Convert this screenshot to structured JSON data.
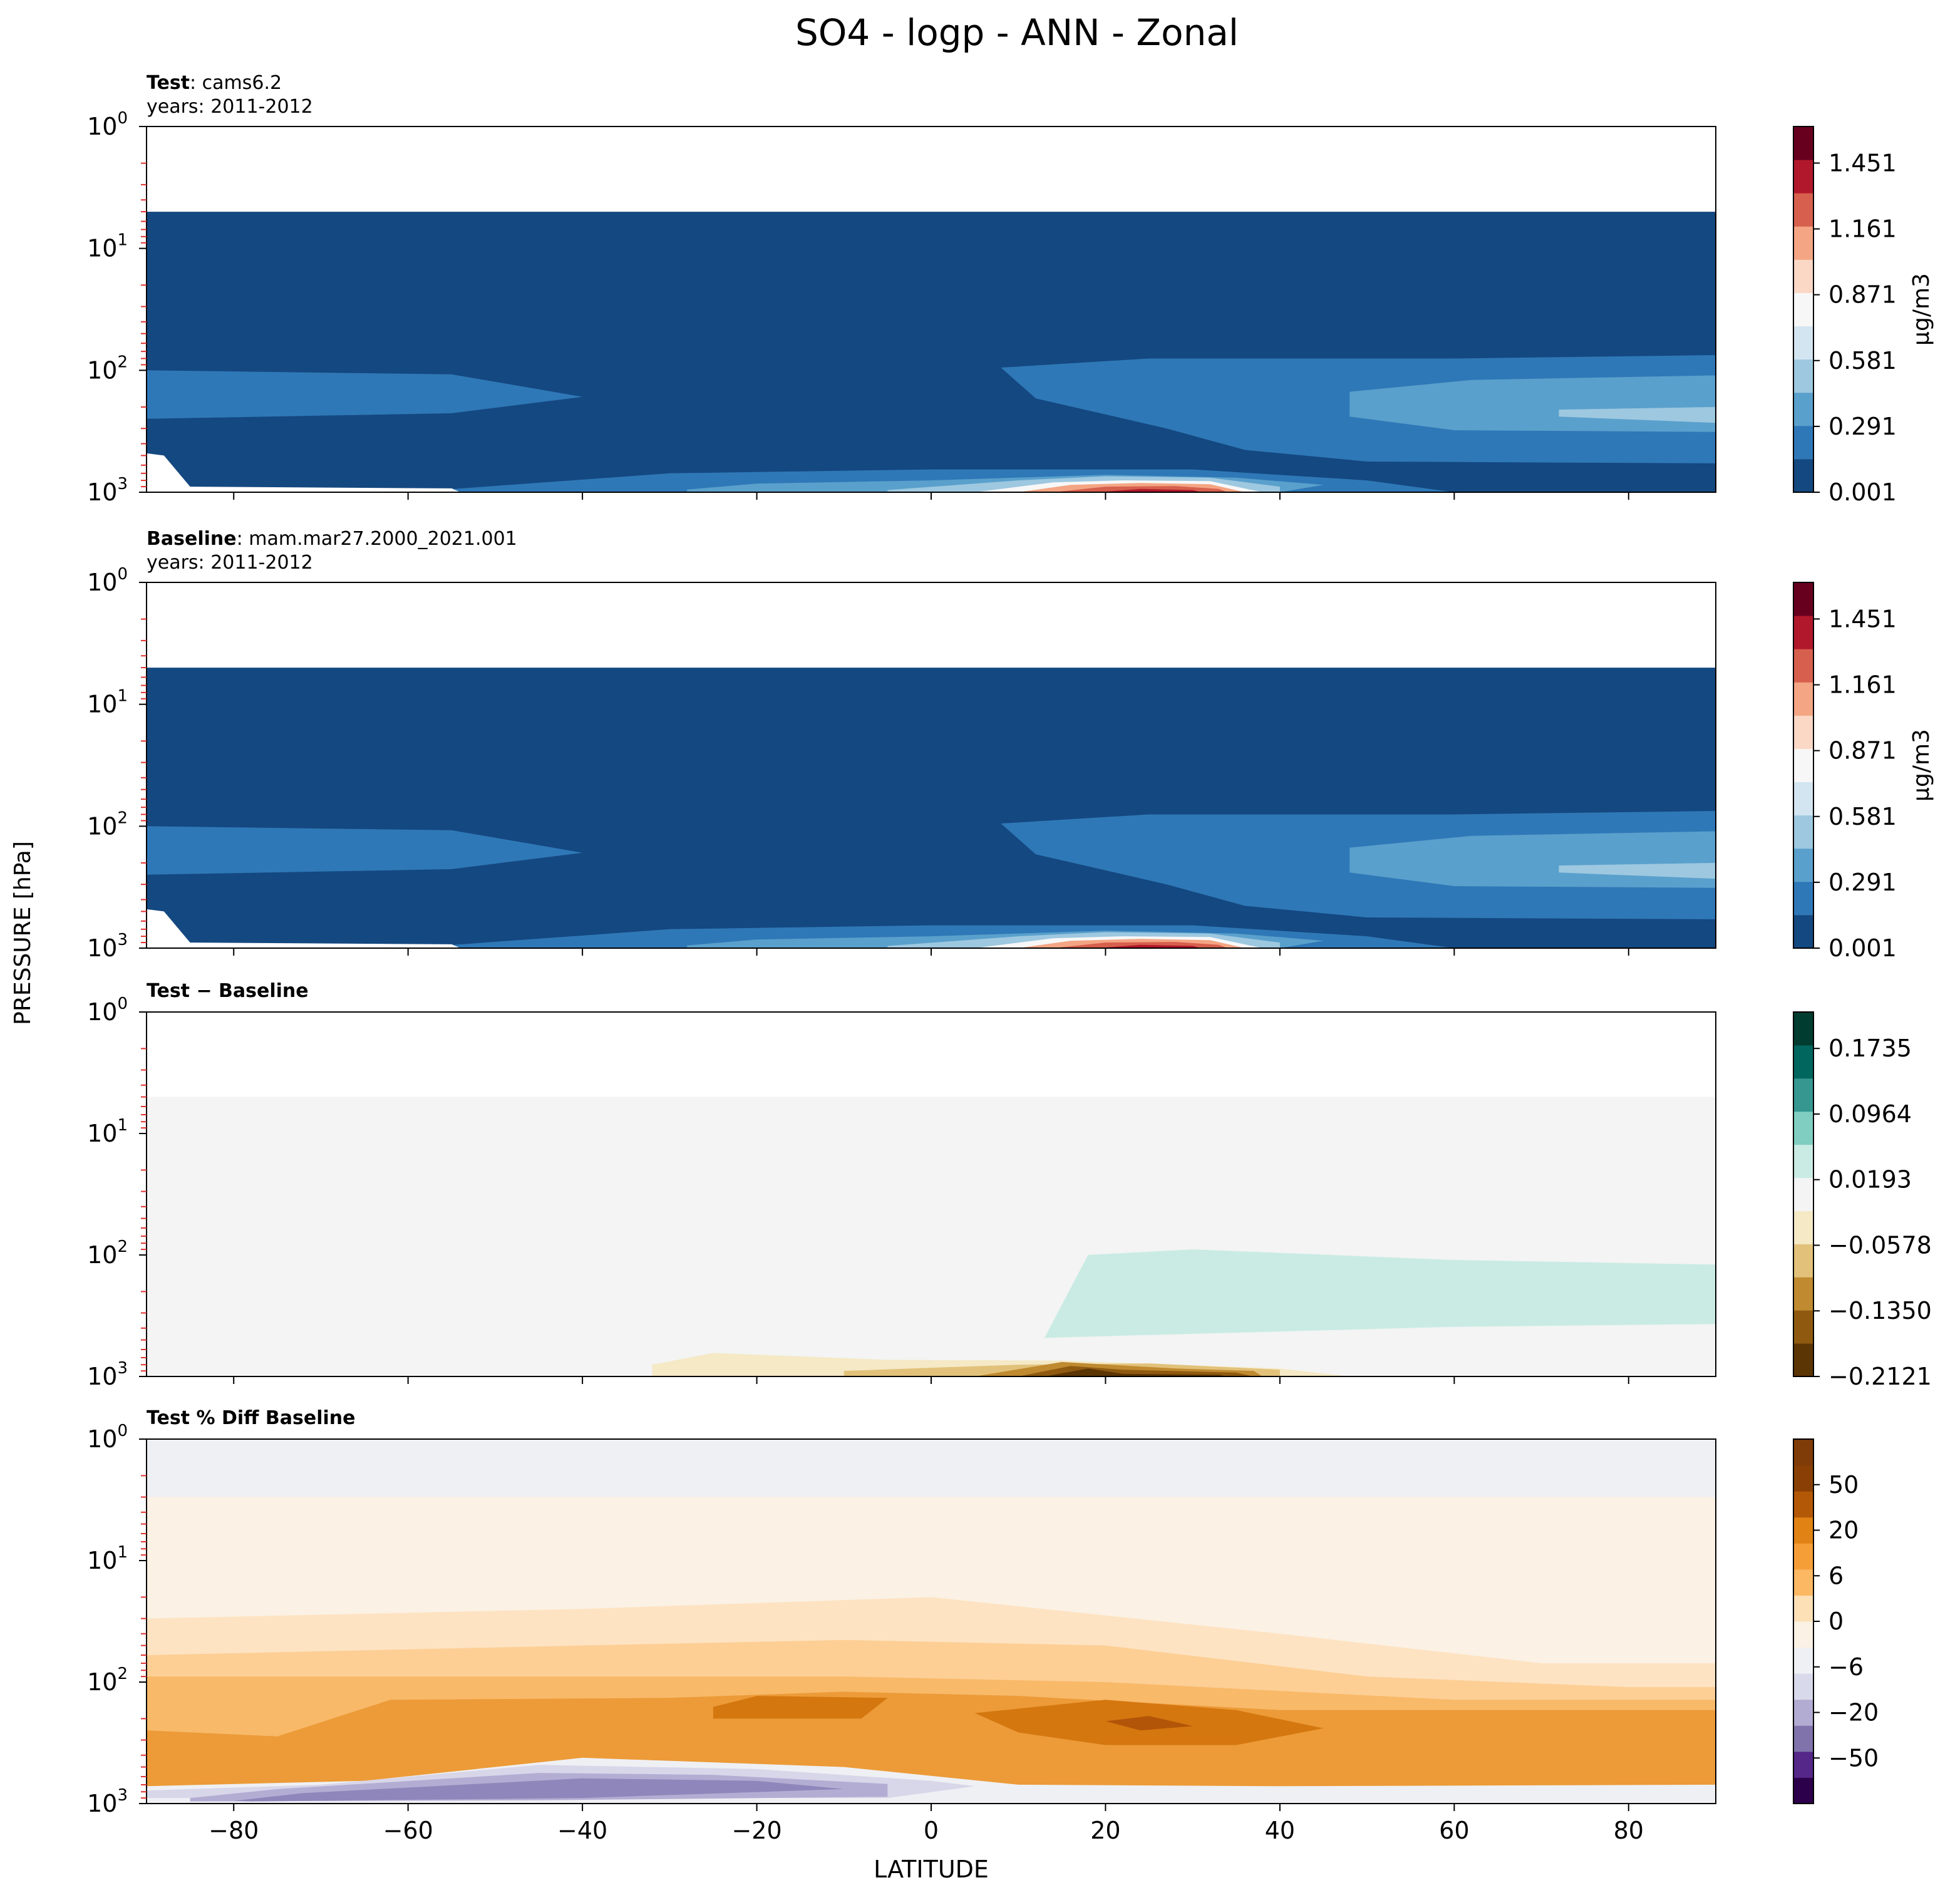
{
  "title": "SO4 - logp - ANN - Zonal",
  "shared": {
    "xlabel": "LATITUDE",
    "ylabel": "PRESSURE [hPa]",
    "xticks": [
      -80,
      -60,
      -40,
      -20,
      0,
      20,
      40,
      60,
      80
    ],
    "xlim": [
      -90,
      90
    ],
    "yticks": [
      {
        "base": "10",
        "exp": "0",
        "p": 1
      },
      {
        "base": "10",
        "exp": "1",
        "p": 10
      },
      {
        "base": "10",
        "exp": "2",
        "p": 100
      },
      {
        "base": "10",
        "exp": "3",
        "p": 1000
      }
    ],
    "ylim_hpa": [
      1,
      1000
    ]
  },
  "panels": [
    {
      "title_bold": "Test",
      "title_rest": ": cams6.2",
      "subtitle": "years: 2011-2012",
      "cbar_label": "μg/m3",
      "cbar_ticks": [
        "0.001",
        "0.291",
        "0.581",
        "0.871",
        "1.161",
        "1.451"
      ],
      "colors": [
        "#ffffff",
        "#144880",
        "#2f78b7",
        "#5aa0cc",
        "#9dc8e0",
        "#f7f7f7",
        "#f4a583",
        "#d6604d",
        "#b2182b"
      ]
    },
    {
      "title_bold": "Baseline",
      "title_rest": ": mam.mar27.2000_2021.001",
      "subtitle": "years: 2011-2012",
      "cbar_label": "μg/m3",
      "cbar_ticks": [
        "0.001",
        "0.291",
        "0.581",
        "0.871",
        "1.161",
        "1.451"
      ],
      "colors": [
        "#ffffff",
        "#144880",
        "#2f78b7",
        "#5aa0cc",
        "#9dc8e0",
        "#f7f7f7",
        "#f4a583",
        "#d6604d",
        "#b2182b"
      ]
    },
    {
      "title_bold": "Test − Baseline",
      "title_rest": "",
      "subtitle": "",
      "cbar_label": "",
      "cbar_ticks": [
        "−0.2121",
        "−0.1350",
        "−0.0578",
        "0.0193",
        "0.0964",
        "0.1735"
      ],
      "colors": [
        "#ffffff",
        "#f3f4f3",
        "#c9ebe4",
        "#f5e9c6",
        "#e2c27a",
        "#bf8a30",
        "#8f5a10",
        "#5c3504"
      ]
    },
    {
      "title_bold": "Test % Diff Baseline",
      "title_rest": "",
      "subtitle": "",
      "cbar_label": "",
      "cbar_ticks": [
        "−50",
        "−20",
        "−6",
        "0",
        "6",
        "20",
        "50"
      ],
      "colors": [
        "#eff0f4",
        "#fbf1e4",
        "#fde3c2",
        "#fdcf95",
        "#f8b969",
        "#ec9b38",
        "#d5770f",
        "#b25508",
        "#d8d6e9",
        "#b4add3",
        "#8f86bb"
      ]
    }
  ],
  "chart_data": [
    {
      "type": "heatmap",
      "title": "Test : cams6.2",
      "xlabel": "LATITUDE",
      "ylabel": "PRESSURE [hPa]",
      "units": "μg/m3",
      "levels": [
        0.001,
        0.291,
        0.581,
        0.871,
        1.161,
        1.451
      ],
      "features": [
        {
          "region": "lat -90..90, p 5..1000 hPa",
          "value_range": "0.001-0.145"
        },
        {
          "region": "lat -90..-40, p 100..250 hPa",
          "value_range": "0.145-0.29"
        },
        {
          "region": "lat 50..90, p 100..300 hPa",
          "value_range": "0.29-0.58"
        },
        {
          "region": "lat 15..35, p ~900 hPa",
          "value_range": "1.3-1.6 (max)"
        }
      ]
    },
    {
      "type": "heatmap",
      "title": "Baseline : mam.mar27.2000_2021.001",
      "xlabel": "LATITUDE",
      "ylabel": "PRESSURE [hPa]",
      "units": "μg/m3",
      "levels": [
        0.001,
        0.291,
        0.581,
        0.871,
        1.161,
        1.451
      ],
      "features": [
        {
          "region": "lat -90..90, p 5..1000 hPa",
          "value_range": "0.001-0.145"
        },
        {
          "region": "lat -90..-45, p 110..250 hPa",
          "value_range": "0.145-0.29"
        },
        {
          "region": "lat 55..90, p 140..320 hPa",
          "value_range": "0.29-0.58"
        },
        {
          "region": "lat 15..35, p ~900 hPa",
          "value_range": "1.3-1.6 (max)"
        }
      ]
    },
    {
      "type": "heatmap",
      "title": "Test − Baseline",
      "xlabel": "LATITUDE",
      "ylabel": "PRESSURE [hPa]",
      "levels": [
        -0.2121,
        -0.135,
        -0.0578,
        0.0193,
        0.0964,
        0.1735
      ],
      "features": [
        {
          "region": "lat 15..90, p 100..350 hPa",
          "value_range": "0.0193-0.058"
        },
        {
          "region": "lat 10..40, p ~900 hPa",
          "value_range": "-0.21 to -0.135 (min)"
        }
      ]
    },
    {
      "type": "heatmap",
      "title": "Test % Diff Baseline",
      "xlabel": "LATITUDE",
      "ylabel": "PRESSURE [hPa]",
      "levels": [
        -50,
        -20,
        -6,
        0,
        6,
        20,
        50
      ],
      "features": [
        {
          "region": "lat -90..90, p 1..3 hPa",
          "value_range": "~0"
        },
        {
          "region": "lat -25..45, p 150..300 hPa",
          "value_range": "20-50 (max)"
        },
        {
          "region": "lat -90..10, p 600..1000 hPa",
          "value_range": "-20 to -6 (min)"
        }
      ]
    }
  ]
}
